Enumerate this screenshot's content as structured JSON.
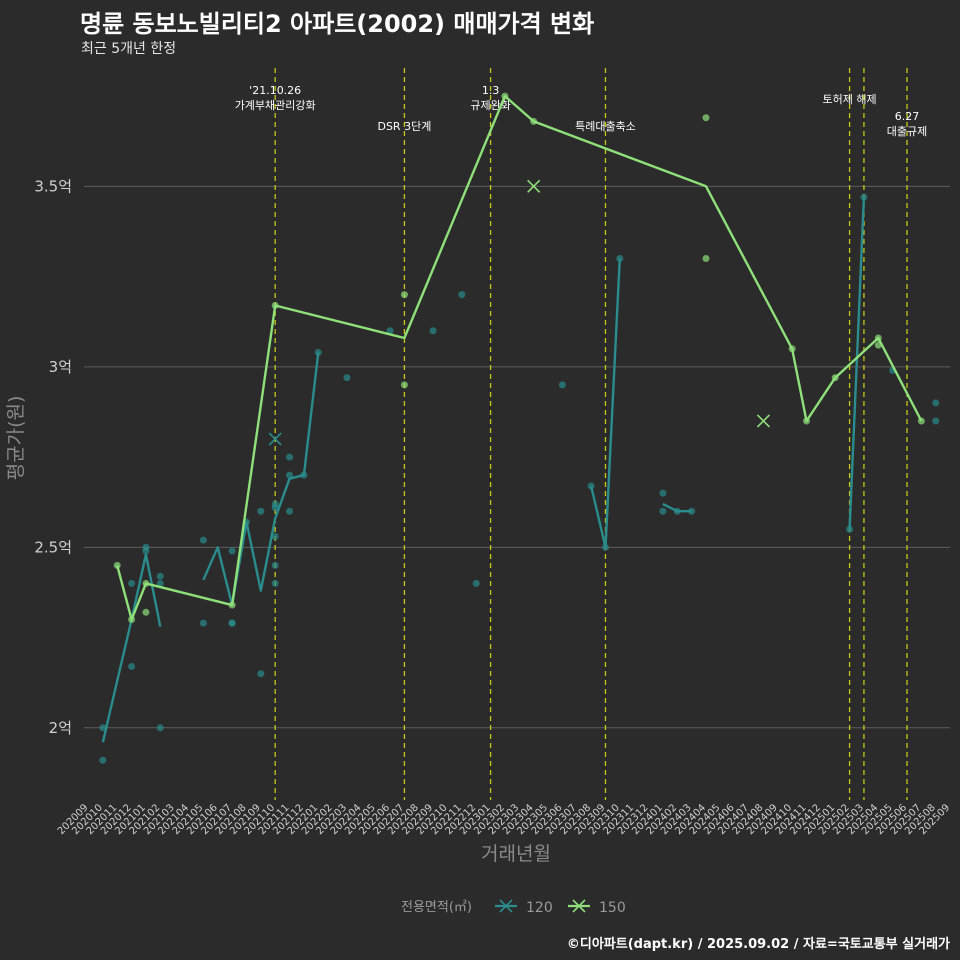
{
  "title": "명륜 동보노빌리티2 아파트(2002) 매매가격 변화",
  "subtitle": "최근 5개년 한정",
  "caption": "©디아파트(dapt.kr) / 2025.09.02 / 자료=국토교통부 실거래가",
  "chart_data": {
    "type": "line",
    "xlabel": "거래년월",
    "ylabel": "평균가(원)",
    "ylim": [
      1.8,
      3.85
    ],
    "yticks": [
      {
        "v": 2.0,
        "label": "2억"
      },
      {
        "v": 2.5,
        "label": "2.5억"
      },
      {
        "v": 3.0,
        "label": "3억"
      },
      {
        "v": 3.5,
        "label": "3.5억"
      }
    ],
    "months": [
      "202009",
      "202010",
      "202011",
      "202012",
      "202101",
      "202102",
      "202103",
      "202104",
      "202105",
      "202106",
      "202107",
      "202108",
      "202109",
      "202110",
      "202111",
      "202112",
      "202201",
      "202202",
      "202203",
      "202204",
      "202205",
      "202206",
      "202207",
      "202208",
      "202209",
      "202210",
      "202211",
      "202212",
      "202301",
      "202302",
      "202303",
      "202304",
      "202305",
      "202306",
      "202307",
      "202308",
      "202309",
      "202310",
      "202311",
      "202312",
      "202401",
      "202402",
      "202403",
      "202404",
      "202405",
      "202406",
      "202407",
      "202408",
      "202409",
      "202410",
      "202411",
      "202412",
      "202501",
      "202502",
      "202503",
      "202504",
      "202505",
      "202506",
      "202507",
      "202508",
      "202509"
    ],
    "colors": {
      "120": "#2a8c8c",
      "150": "#8fe07a"
    },
    "legend": {
      "title": "전용면적(㎡)",
      "items": [
        "120",
        "150"
      ]
    },
    "events": [
      {
        "month": 13.0,
        "lines": [
          "'21.10.26",
          "가계부채관리강화"
        ],
        "row": 0
      },
      {
        "month": 22.0,
        "lines": [
          "DSR 3단계"
        ],
        "row": 2
      },
      {
        "month": 28.0,
        "lines": [
          "1.3",
          "규제완화"
        ],
        "row": 0
      },
      {
        "month": 36.0,
        "lines": [
          "특례대출축소"
        ],
        "row": 2
      },
      {
        "month": 53.0,
        "lines": [
          "토허제 해제"
        ],
        "row": 1
      },
      {
        "month": 54.0,
        "lines": [],
        "row": 1
      },
      {
        "month": 57.0,
        "lines": [
          "6.27",
          "대출규제"
        ],
        "row": 2.4
      }
    ],
    "series": [
      {
        "name": "120",
        "segments": [
          [
            [
              1,
              1.96
            ],
            [
              2,
              2.13
            ],
            [
              3,
              2.3
            ],
            [
              4,
              2.48
            ],
            [
              5,
              2.28
            ]
          ],
          [
            [
              8,
              2.41
            ],
            [
              9,
              2.5
            ],
            [
              10,
              2.34
            ],
            [
              11,
              2.57
            ],
            [
              12,
              2.38
            ],
            [
              13,
              2.58
            ],
            [
              14,
              2.69
            ],
            [
              15,
              2.7
            ],
            [
              16,
              3.04
            ]
          ],
          [
            [
              35,
              2.67
            ],
            [
              36,
              2.5
            ],
            [
              37,
              3.3
            ]
          ],
          [
            [
              40,
              2.62
            ],
            [
              41,
              2.6
            ],
            [
              42,
              2.6
            ]
          ],
          [
            [
              53,
              2.55
            ],
            [
              54,
              3.47
            ]
          ]
        ],
        "points": [
          [
            1,
            2.0
          ],
          [
            1,
            1.91
          ],
          [
            3,
            2.17
          ],
          [
            3,
            2.4
          ],
          [
            4,
            2.5
          ],
          [
            4,
            2.49
          ],
          [
            5,
            2.42
          ],
          [
            5,
            2.4
          ],
          [
            5,
            2.0
          ],
          [
            8,
            2.52
          ],
          [
            8,
            2.29
          ],
          [
            10,
            2.49
          ],
          [
            10,
            2.29
          ],
          [
            10,
            2.29
          ],
          [
            11,
            2.57
          ],
          [
            12,
            2.6
          ],
          [
            12,
            2.15
          ],
          [
            13,
            2.62
          ],
          [
            13,
            2.61
          ],
          [
            13,
            2.53
          ],
          [
            13,
            2.45
          ],
          [
            13,
            2.4
          ],
          [
            14,
            2.75
          ],
          [
            14,
            2.7
          ],
          [
            14,
            2.6
          ],
          [
            15,
            2.7
          ],
          [
            16,
            3.04
          ],
          [
            18,
            2.97
          ],
          [
            21,
            3.1
          ],
          [
            24,
            3.1
          ],
          [
            26,
            3.2
          ],
          [
            27,
            2.4
          ],
          [
            33,
            2.95
          ],
          [
            35,
            2.67
          ],
          [
            36,
            2.5
          ],
          [
            37,
            3.3
          ],
          [
            40,
            2.65
          ],
          [
            40,
            2.6
          ],
          [
            41,
            2.6
          ],
          [
            42,
            2.6
          ],
          [
            53,
            2.55
          ],
          [
            54,
            3.47
          ],
          [
            56,
            2.99
          ],
          [
            59,
            2.9
          ],
          [
            59,
            2.85
          ]
        ],
        "crosses": [
          [
            13,
            2.8
          ]
        ]
      },
      {
        "name": "150",
        "segments": [
          [
            [
              2,
              2.45
            ],
            [
              3,
              2.3
            ],
            [
              4,
              2.4
            ],
            [
              10,
              2.34
            ],
            [
              13,
              3.17
            ],
            [
              22,
              3.08
            ],
            [
              29,
              3.75
            ],
            [
              31,
              3.68
            ],
            [
              43,
              3.5
            ],
            [
              49,
              3.05
            ],
            [
              50,
              2.85
            ],
            [
              52,
              2.97
            ],
            [
              55,
              3.08
            ],
            [
              58,
              2.85
            ]
          ]
        ],
        "points": [
          [
            2,
            2.45
          ],
          [
            3,
            2.3
          ],
          [
            4,
            2.4
          ],
          [
            4,
            2.32
          ],
          [
            10,
            2.34
          ],
          [
            13,
            3.17
          ],
          [
            22,
            3.2
          ],
          [
            22,
            2.95
          ],
          [
            29,
            3.75
          ],
          [
            31,
            3.68
          ],
          [
            43,
            3.69
          ],
          [
            43,
            3.3
          ],
          [
            49,
            3.05
          ],
          [
            50,
            2.85
          ],
          [
            52,
            2.97
          ],
          [
            55,
            3.08
          ],
          [
            55,
            3.06
          ],
          [
            58,
            2.85
          ]
        ],
        "crosses": [
          [
            31,
            3.5
          ],
          [
            47,
            2.85
          ]
        ]
      }
    ]
  }
}
